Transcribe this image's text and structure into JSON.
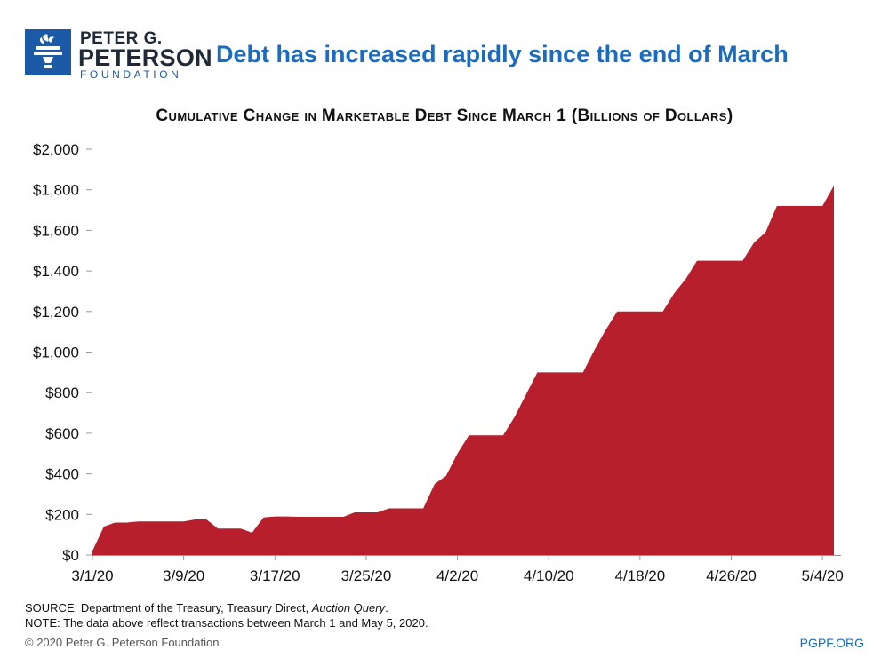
{
  "header": {
    "logo": {
      "line1": "PETER G.",
      "line2": "PETERSON",
      "line3": "FOUNDATION",
      "icon": "torch-icon",
      "brand_color": "#1a5aa6"
    },
    "headline": "Debt has increased rapidly since the end of March"
  },
  "chart_data": {
    "type": "area",
    "title": "Cumulative Change in Marketable Debt Since March 1 (Billions of Dollars)",
    "xlabel": "",
    "ylabel": "",
    "ylim": [
      0,
      2000
    ],
    "y_ticks": [
      0,
      200,
      400,
      600,
      800,
      1000,
      1200,
      1400,
      1600,
      1800,
      2000
    ],
    "y_tick_labels": [
      "$0",
      "$200",
      "$400",
      "$600",
      "$800",
      "$1,000",
      "$1,200",
      "$1,400",
      "$1,600",
      "$1,800",
      "$2,000"
    ],
    "x_tick_labels": [
      "3/1/20",
      "3/9/20",
      "3/17/20",
      "3/25/20",
      "4/2/20",
      "4/10/20",
      "4/18/20",
      "4/26/20",
      "5/4/20"
    ],
    "x_tick_dates": [
      "3/1/20",
      "3/9/20",
      "3/17/20",
      "3/25/20",
      "4/2/20",
      "4/10/20",
      "4/18/20",
      "4/26/20",
      "5/4/20"
    ],
    "grid": false,
    "fill_color": "#b71f2d",
    "x": [
      "3/1/20",
      "3/2/20",
      "3/3/20",
      "3/4/20",
      "3/5/20",
      "3/6/20",
      "3/7/20",
      "3/8/20",
      "3/9/20",
      "3/10/20",
      "3/11/20",
      "3/12/20",
      "3/13/20",
      "3/14/20",
      "3/15/20",
      "3/16/20",
      "3/17/20",
      "3/18/20",
      "3/19/20",
      "3/20/20",
      "3/21/20",
      "3/22/20",
      "3/23/20",
      "3/24/20",
      "3/25/20",
      "3/26/20",
      "3/27/20",
      "3/28/20",
      "3/29/20",
      "3/30/20",
      "3/31/20",
      "4/1/20",
      "4/2/20",
      "4/3/20",
      "4/4/20",
      "4/5/20",
      "4/6/20",
      "4/7/20",
      "4/8/20",
      "4/9/20",
      "4/10/20",
      "4/11/20",
      "4/12/20",
      "4/13/20",
      "4/14/20",
      "4/15/20",
      "4/16/20",
      "4/17/20",
      "4/18/20",
      "4/19/20",
      "4/20/20",
      "4/21/20",
      "4/22/20",
      "4/23/20",
      "4/24/20",
      "4/25/20",
      "4/26/20",
      "4/27/20",
      "4/28/20",
      "4/29/20",
      "4/30/20",
      "5/1/20",
      "5/2/20",
      "5/3/20",
      "5/4/20",
      "5/5/20"
    ],
    "values": [
      20,
      140,
      160,
      160,
      165,
      165,
      165,
      165,
      165,
      175,
      175,
      130,
      130,
      130,
      110,
      185,
      190,
      190,
      188,
      188,
      188,
      188,
      188,
      210,
      210,
      210,
      230,
      230,
      230,
      230,
      350,
      390,
      500,
      590,
      590,
      590,
      590,
      680,
      790,
      900,
      900,
      900,
      900,
      900,
      1010,
      1110,
      1200,
      1200,
      1200,
      1200,
      1200,
      1290,
      1360,
      1450,
      1450,
      1450,
      1450,
      1450,
      1540,
      1590,
      1720,
      1720,
      1720,
      1720,
      1720,
      1820
    ]
  },
  "notes": {
    "source_prefix": "SOURCE: Department of the Treasury, Treasury Direct, ",
    "source_italic": "Auction Query",
    "source_suffix": ".",
    "note": "NOTE: The data above reflect transactions between March 1 and May 5, 2020."
  },
  "footer": {
    "copyright": "© 2020 Peter G. Peterson Foundation",
    "site": "PGPF.ORG"
  }
}
